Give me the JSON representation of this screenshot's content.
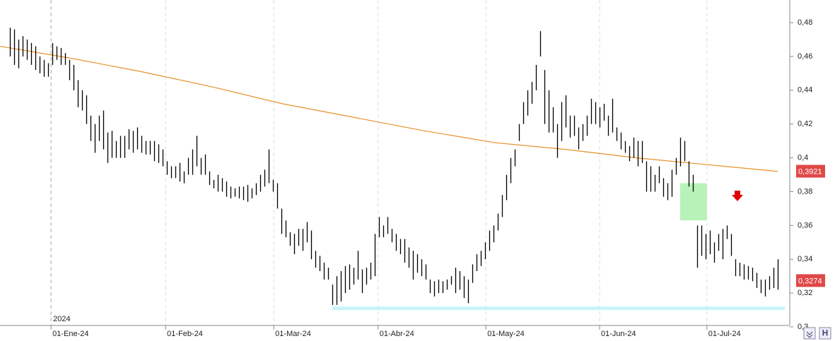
{
  "chart_data": {
    "type": "hilo",
    "color": "#000000",
    "high": [
      0.477,
      0.476,
      0.47,
      0.472,
      0.47,
      0.468,
      0.466,
      0.46,
      0.458,
      0.456,
      0.468,
      0.466,
      0.465,
      0.462,
      0.458,
      0.455,
      0.446,
      0.44,
      0.437,
      0.425,
      0.42,
      0.425,
      0.428,
      0.415,
      0.416,
      0.41,
      0.413,
      0.413,
      0.417,
      0.416,
      0.418,
      0.413,
      0.41,
      0.41,
      0.41,
      0.408,
      0.405,
      0.398,
      0.395,
      0.395,
      0.397,
      0.392,
      0.4,
      0.405,
      0.413,
      0.4,
      0.402,
      0.392,
      0.387,
      0.39,
      0.388,
      0.386,
      0.383,
      0.382,
      0.383,
      0.383,
      0.384,
      0.382,
      0.385,
      0.39,
      0.393,
      0.405,
      0.387,
      0.385,
      0.37,
      0.363,
      0.356,
      0.355,
      0.358,
      0.358,
      0.362,
      0.357,
      0.345,
      0.342,
      0.338,
      0.335,
      0.325,
      0.33,
      0.333,
      0.336,
      0.337,
      0.335,
      0.345,
      0.334,
      0.335,
      0.338,
      0.355,
      0.365,
      0.36,
      0.365,
      0.358,
      0.355,
      0.352,
      0.352,
      0.347,
      0.345,
      0.343,
      0.34,
      0.337,
      0.328,
      0.327,
      0.328,
      0.327,
      0.328,
      0.33,
      0.335,
      0.333,
      0.33,
      0.328,
      0.337,
      0.343,
      0.345,
      0.35,
      0.357,
      0.36,
      0.367,
      0.378,
      0.39,
      0.4,
      0.405,
      0.42,
      0.433,
      0.44,
      0.445,
      0.455,
      0.475,
      0.452,
      0.44,
      0.43,
      0.42,
      0.433,
      0.437,
      0.425,
      0.425,
      0.418,
      0.42,
      0.425,
      0.435,
      0.433,
      0.43,
      0.432,
      0.425,
      0.435,
      0.418,
      0.415,
      0.41,
      0.407,
      0.412,
      0.41,
      0.41,
      0.398,
      0.395,
      0.39,
      0.395,
      0.388,
      0.385,
      0.393,
      0.4,
      0.412,
      0.41,
      0.398,
      0.39,
      0.36,
      0.36,
      0.355,
      0.357,
      0.35,
      0.355,
      0.358,
      0.36,
      0.355,
      0.34,
      0.338,
      0.337,
      0.336,
      0.335,
      0.332,
      0.328,
      0.328,
      0.33,
      0.335,
      0.34
    ],
    "low": [
      0.46,
      0.455,
      0.453,
      0.46,
      0.458,
      0.455,
      0.452,
      0.45,
      0.448,
      0.448,
      0.455,
      0.458,
      0.455,
      0.455,
      0.446,
      0.44,
      0.43,
      0.428,
      0.42,
      0.41,
      0.403,
      0.41,
      0.405,
      0.397,
      0.4,
      0.4,
      0.4,
      0.4,
      0.405,
      0.403,
      0.405,
      0.403,
      0.402,
      0.402,
      0.398,
      0.397,
      0.395,
      0.39,
      0.388,
      0.388,
      0.386,
      0.385,
      0.39,
      0.39,
      0.395,
      0.39,
      0.39,
      0.384,
      0.382,
      0.38,
      0.38,
      0.377,
      0.376,
      0.377,
      0.376,
      0.375,
      0.374,
      0.376,
      0.378,
      0.38,
      0.383,
      0.385,
      0.38,
      0.37,
      0.355,
      0.353,
      0.348,
      0.343,
      0.348,
      0.345,
      0.35,
      0.34,
      0.335,
      0.333,
      0.328,
      0.328,
      0.313,
      0.313,
      0.315,
      0.32,
      0.322,
      0.325,
      0.328,
      0.32,
      0.325,
      0.328,
      0.33,
      0.353,
      0.353,
      0.355,
      0.35,
      0.345,
      0.343,
      0.338,
      0.335,
      0.328,
      0.332,
      0.33,
      0.328,
      0.32,
      0.318,
      0.32,
      0.32,
      0.322,
      0.325,
      0.32,
      0.322,
      0.317,
      0.314,
      0.326,
      0.333,
      0.336,
      0.34,
      0.345,
      0.35,
      0.357,
      0.365,
      0.375,
      0.385,
      0.395,
      0.41,
      0.42,
      0.425,
      0.432,
      0.44,
      0.46,
      0.42,
      0.415,
      0.415,
      0.4,
      0.41,
      0.418,
      0.412,
      0.413,
      0.405,
      0.41,
      0.413,
      0.42,
      0.42,
      0.418,
      0.422,
      0.413,
      0.415,
      0.41,
      0.405,
      0.403,
      0.398,
      0.4,
      0.395,
      0.397,
      0.38,
      0.38,
      0.38,
      0.385,
      0.377,
      0.375,
      0.377,
      0.39,
      0.395,
      0.398,
      0.383,
      0.38,
      0.335,
      0.342,
      0.34,
      0.343,
      0.338,
      0.345,
      0.34,
      0.352,
      0.342,
      0.33,
      0.33,
      0.328,
      0.328,
      0.327,
      0.323,
      0.32,
      0.318,
      0.322,
      0.323,
      0.322
    ],
    "moving_average": {
      "color": "#e8902a",
      "x": [
        -2.3,
        14.3,
        31,
        47.7,
        64.3,
        81,
        97.7,
        114.3,
        131,
        147.7,
        164.3,
        181
      ],
      "values": [
        0.466,
        0.459,
        0.451,
        0.442,
        0.432,
        0.424,
        0.416,
        0.409,
        0.405,
        0.4,
        0.396,
        0.392
      ]
    },
    "xlim": [
      -2.33,
      183.5
    ],
    "ylim": [
      0.3,
      0.4934
    ],
    "xticks": [
      {
        "value": 9.7,
        "label": "01-Ene-24"
      },
      {
        "value": 36.7,
        "label": "01-Feb-24"
      },
      {
        "value": 62.2,
        "label": "01-Mar-24"
      },
      {
        "value": 86.8,
        "label": "01-Abr-24"
      },
      {
        "value": 112.2,
        "label": "01-May-24"
      },
      {
        "value": 139,
        "label": "01-Jun-24"
      },
      {
        "value": 164.3,
        "label": "01-Jul-24"
      }
    ],
    "yticks": [
      {
        "value": 0.48,
        "label": "0,48"
      },
      {
        "value": 0.46,
        "label": "0,46"
      },
      {
        "value": 0.44,
        "label": "0,44"
      },
      {
        "value": 0.42,
        "label": "0,42"
      },
      {
        "value": 0.4,
        "label": "0,4"
      },
      {
        "value": 0.38,
        "label": "0,38"
      },
      {
        "value": 0.36,
        "label": "0,36"
      },
      {
        "value": 0.34,
        "label": "0,34"
      },
      {
        "value": 0.32,
        "label": "0,32"
      },
      {
        "value": 0.3,
        "label": "0,3"
      }
    ],
    "year_label": "2024",
    "price_tags": [
      {
        "value": 0.3921,
        "label": "0,3921"
      },
      {
        "value": 0.3274,
        "label": "0,3274"
      }
    ],
    "zone": {
      "x": [
        158,
        164.3
      ],
      "y": [
        0.363,
        0.385
      ],
      "color": "#b9f2b9"
    },
    "support": {
      "x": [
        76,
        182.7
      ],
      "value": 0.311,
      "color": "#c8f4f8"
    },
    "grid": true
  }
}
